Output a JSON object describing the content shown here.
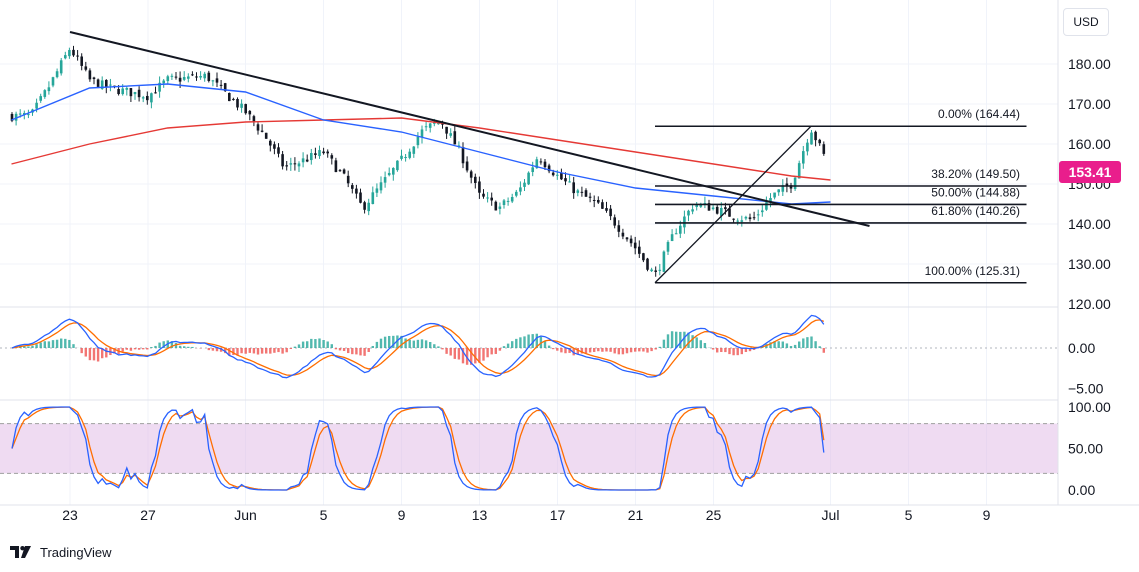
{
  "header": {
    "currency": "USD",
    "last_price": "153.41",
    "last_price_color": "#e91e8c"
  },
  "brand": {
    "logo": "tradingview-logo-icon",
    "name": "TradingView"
  },
  "colors": {
    "up": "#26a69a",
    "down": "#ef5350",
    "candle_body_dark": "#131722",
    "ma_fast": "#2962ff",
    "ma_slow": "#e53935",
    "macd": "#2962ff",
    "signal": "#ff6d00",
    "stoch_k": "#2962ff",
    "stoch_d": "#ff6d00",
    "stoch_band": "#e1bee7",
    "trendline": "#131722"
  },
  "chart_data": [
    {
      "panel": "price",
      "type": "candlestick",
      "y_ticks": [
        "180.00",
        "170.00",
        "160.00",
        "150.00",
        "140.00",
        "130.00",
        "120.00"
      ],
      "ylim": [
        120,
        188
      ],
      "x_ticks": [
        "23",
        "27",
        "Jun",
        "5",
        "9",
        "13",
        "17",
        "21",
        "25",
        "Jul",
        "5",
        "9"
      ],
      "close_path": [
        [
          "May 21",
          167
        ],
        [
          "May 22",
          175
        ],
        [
          "May 23",
          184
        ],
        [
          "May 24",
          176
        ],
        [
          "May 25",
          174
        ],
        [
          "May 27",
          172
        ],
        [
          "May 28",
          176
        ],
        [
          "May 30",
          177
        ],
        [
          "Jun 1",
          168
        ],
        [
          "Jun 2",
          162
        ],
        [
          "Jun 3",
          154
        ],
        [
          "Jun 4",
          156
        ],
        [
          "Jun 5",
          158
        ],
        [
          "Jun 6",
          152
        ],
        [
          "Jun 7",
          144
        ],
        [
          "Jun 8",
          150
        ],
        [
          "Jun 9",
          156
        ],
        [
          "Jun 10",
          163
        ],
        [
          "Jun 11",
          166
        ],
        [
          "Jun 12",
          158
        ],
        [
          "Jun 13",
          147
        ],
        [
          "Jun 14",
          144
        ],
        [
          "Jun 15",
          148
        ],
        [
          "Jun 16",
          157
        ],
        [
          "Jun 17",
          152
        ],
        [
          "Jun 18",
          148
        ],
        [
          "Jun 19",
          145
        ],
        [
          "Jun 20",
          140
        ],
        [
          "Jun 21",
          134
        ],
        [
          "Jun 22",
          127
        ],
        [
          "Jun 23",
          138
        ],
        [
          "Jun 24",
          145
        ],
        [
          "Jun 25",
          144
        ],
        [
          "Jun 26",
          142
        ],
        [
          "Jun 27",
          141
        ],
        [
          "Jun 28",
          147
        ],
        [
          "Jun 29",
          150
        ],
        [
          "Jun 30",
          164
        ],
        [
          "Jul 1",
          153.41
        ]
      ],
      "ma_blue": [
        [
          "May 20",
          166
        ],
        [
          "May 24",
          174
        ],
        [
          "May 28",
          175
        ],
        [
          "Jun 1",
          173
        ],
        [
          "Jun 5",
          166
        ],
        [
          "Jun 9",
          163
        ],
        [
          "Jun 13",
          158
        ],
        [
          "Jun 17",
          153
        ],
        [
          "Jun 21",
          149
        ],
        [
          "Jun 25",
          147
        ],
        [
          "Jun 29",
          145
        ],
        [
          "Jul 1",
          145.5
        ]
      ],
      "ma_red": [
        [
          "May 20",
          155
        ],
        [
          "May 24",
          160
        ],
        [
          "May 28",
          164
        ],
        [
          "Jun 1",
          165.5
        ],
        [
          "Jun 5",
          166
        ],
        [
          "Jun 9",
          166.5
        ],
        [
          "Jun 13",
          164
        ],
        [
          "Jun 17",
          161
        ],
        [
          "Jun 21",
          158
        ],
        [
          "Jun 25",
          155
        ],
        [
          "Jun 29",
          152
        ],
        [
          "Jul 1",
          151
        ]
      ],
      "trendline": {
        "from": [
          "May 23",
          188
        ],
        "to": [
          "Jul 3",
          139.5
        ]
      },
      "fib_swing": {
        "from": [
          "Jun 22",
          125.31
        ],
        "to": [
          "Jun 30",
          164.44
        ]
      },
      "fib_levels": [
        {
          "label": "0.00% (164.44)",
          "price": 164.44
        },
        {
          "label": "38.20% (149.50)",
          "price": 149.5
        },
        {
          "label": "50.00% (144.88)",
          "price": 144.88
        },
        {
          "label": "61.80% (140.26)",
          "price": 140.26
        },
        {
          "label": "100.00% (125.31)",
          "price": 125.31
        }
      ]
    },
    {
      "panel": "macd",
      "type": "line",
      "y_ticks": [
        "0.00",
        "−5.00"
      ],
      "ylim": [
        -6.5,
        7.5
      ]
    },
    {
      "panel": "stochastic",
      "type": "line",
      "y_ticks": [
        "100.00",
        "50.00",
        "0.00"
      ],
      "ylim": [
        0,
        100
      ],
      "band": [
        20,
        80
      ],
      "last_k": 45,
      "last_d": 60
    }
  ]
}
